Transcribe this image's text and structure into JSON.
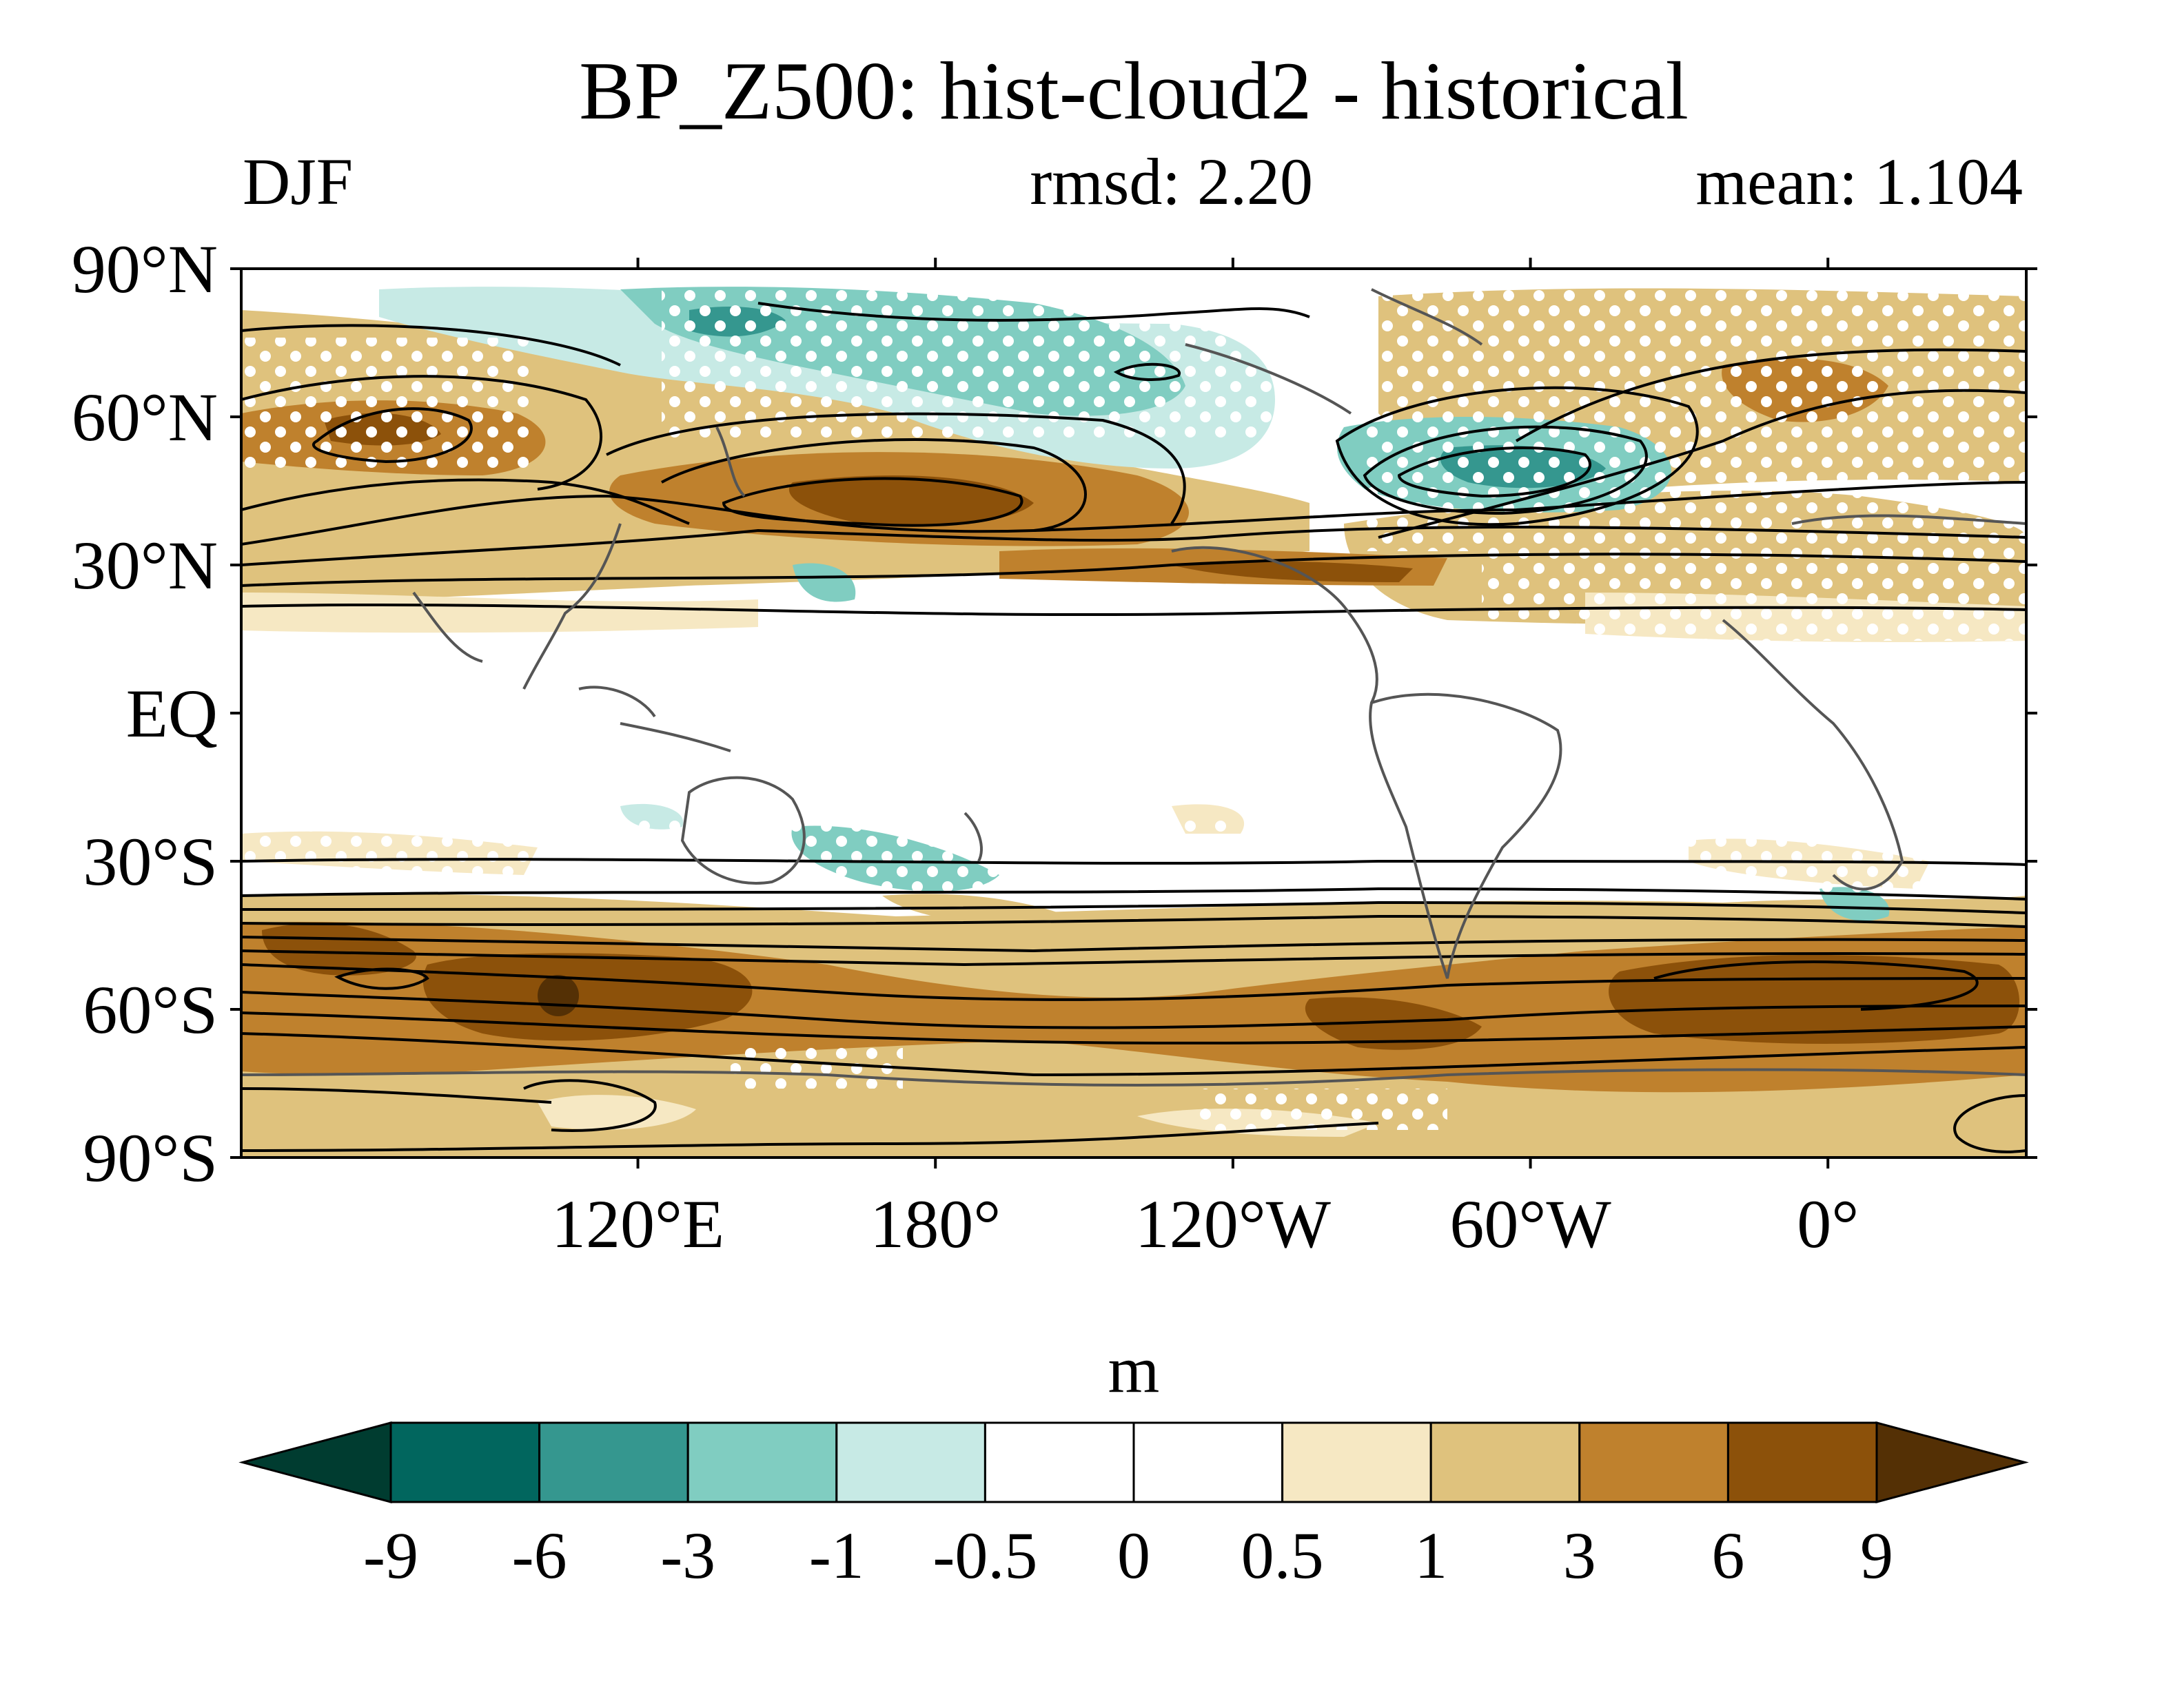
{
  "title": "BP_Z500: hist-cloud2 - historical",
  "season": "DJF",
  "stats": {
    "rmsd": "rmsd: 2.20",
    "mean": "mean: 1.104"
  },
  "lat_ticks": [
    {
      "value": 90,
      "label": "90°N"
    },
    {
      "value": 60,
      "label": "60°N"
    },
    {
      "value": 30,
      "label": "30°N"
    },
    {
      "value": 0,
      "label": "EQ"
    },
    {
      "value": -30,
      "label": "30°S"
    },
    {
      "value": -60,
      "label": "60°S"
    },
    {
      "value": -90,
      "label": "90°S"
    }
  ],
  "lon_ticks": [
    {
      "value": 120,
      "label": "120°E"
    },
    {
      "value": 180,
      "label": "180°"
    },
    {
      "value": 240,
      "label": "120°W"
    },
    {
      "value": 300,
      "label": "60°W"
    },
    {
      "value": 360,
      "label": "0°"
    }
  ],
  "lon_range": [
    40,
    400
  ],
  "lat_range": [
    -90,
    90
  ],
  "colorbar": {
    "unit": "m",
    "levels": [
      "-9",
      "-6",
      "-3",
      "-1",
      "-0.5",
      "0",
      "0.5",
      "1",
      "3",
      "6",
      "9"
    ],
    "colors": [
      "#003c30",
      "#01665e",
      "#35978f",
      "#80cdc1",
      "#c7eae5",
      "#ffffff",
      "#ffffff",
      "#f6e8c3",
      "#dfc27d",
      "#bf812d",
      "#8c510a",
      "#543005"
    ]
  },
  "colors": {
    "contour": "#000000",
    "coastline": "#555555",
    "stipple": "#ffffff"
  }
}
